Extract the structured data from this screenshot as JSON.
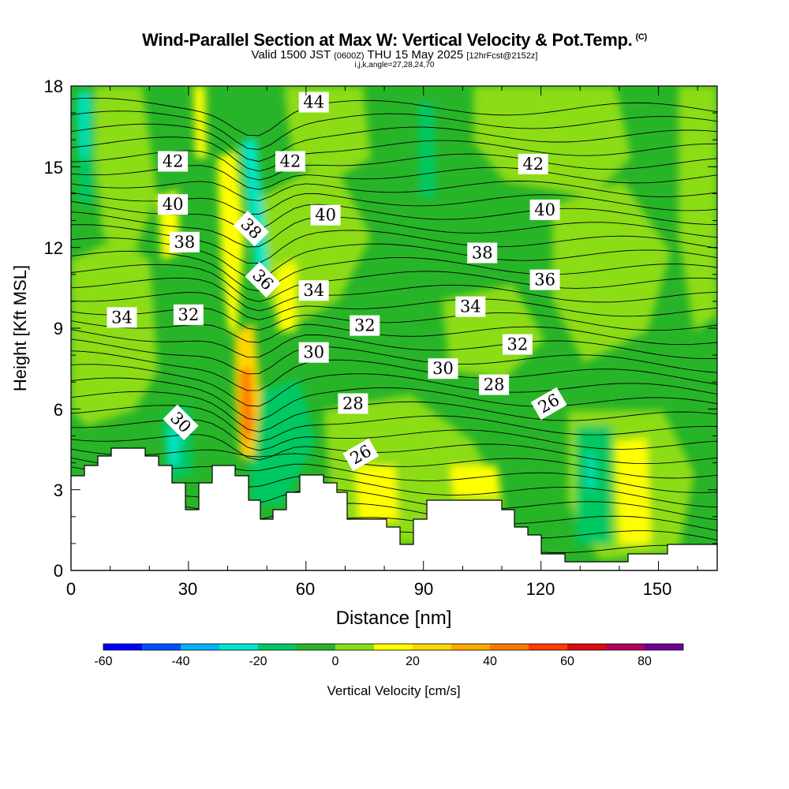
{
  "header": {
    "title": "Wind-Parallel Section at Max W: Vertical Velocity & Pot.Temp.",
    "copyright_mark": "(C)",
    "subtitle_prefix": "Valid 1500 JST",
    "subtitle_utc": "(0600Z)",
    "subtitle_date": "THU 15 May 2025",
    "subtitle_fcst": "[12hrFcst@2152z]",
    "params": "i,j,k,angle=27,28,24,70"
  },
  "chart_data": {
    "type": "heatmap",
    "title": "Wind-Parallel Section at Max W: Vertical Velocity & Pot.Temp.",
    "xlabel": "Distance [nm]",
    "ylabel": "Height [Kft MSL]",
    "xlim": [
      0,
      165
    ],
    "ylim": [
      0,
      18
    ],
    "x_ticks": [
      0,
      30,
      60,
      90,
      120,
      150
    ],
    "y_ticks": [
      0,
      3,
      6,
      9,
      12,
      15,
      18
    ],
    "colorbar": {
      "label": "Vertical Velocity [cm/s]",
      "ticks": [
        -60,
        -40,
        -20,
        0,
        20,
        40,
        60,
        80
      ],
      "bins": [
        -60,
        -50,
        -40,
        -30,
        -20,
        -10,
        0,
        10,
        20,
        30,
        40,
        50,
        60,
        70,
        80,
        90
      ],
      "colors": [
        "#0000ff",
        "#0050ff",
        "#00b4ff",
        "#00e6c8",
        "#00c864",
        "#28b428",
        "#8cdc14",
        "#ffff00",
        "#ffd700",
        "#ffaa00",
        "#ff7800",
        "#ff3c00",
        "#dc0a14",
        "#b4005a",
        "#6e0096"
      ]
    },
    "theta_labels": [
      {
        "text": "44",
        "x": 62,
        "y": 17.4,
        "angle": 0
      },
      {
        "text": "42",
        "x": 26,
        "y": 15.2,
        "angle": 0
      },
      {
        "text": "42",
        "x": 56,
        "y": 15.2,
        "angle": 0
      },
      {
        "text": "42",
        "x": 118,
        "y": 15.1,
        "angle": 0
      },
      {
        "text": "40",
        "x": 26,
        "y": 13.6,
        "angle": 0
      },
      {
        "text": "40",
        "x": 65,
        "y": 13.2,
        "angle": 0
      },
      {
        "text": "40",
        "x": 121,
        "y": 13.4,
        "angle": 0
      },
      {
        "text": "38",
        "x": 29,
        "y": 12.2,
        "angle": 0
      },
      {
        "text": "38",
        "x": 46,
        "y": 12.7,
        "angle": 45
      },
      {
        "text": "38",
        "x": 105,
        "y": 11.8,
        "angle": 0
      },
      {
        "text": "36",
        "x": 49,
        "y": 10.8,
        "angle": 45
      },
      {
        "text": "36",
        "x": 121,
        "y": 10.8,
        "angle": 0
      },
      {
        "text": "34",
        "x": 13,
        "y": 9.4,
        "angle": 0
      },
      {
        "text": "34",
        "x": 62,
        "y": 10.4,
        "angle": 0
      },
      {
        "text": "34",
        "x": 102,
        "y": 9.8,
        "angle": 0
      },
      {
        "text": "32",
        "x": 30,
        "y": 9.5,
        "angle": 0
      },
      {
        "text": "32",
        "x": 75,
        "y": 9.1,
        "angle": 0
      },
      {
        "text": "32",
        "x": 114,
        "y": 8.4,
        "angle": 0
      },
      {
        "text": "30",
        "x": 28,
        "y": 5.5,
        "angle": 45
      },
      {
        "text": "30",
        "x": 62,
        "y": 8.1,
        "angle": 0
      },
      {
        "text": "30",
        "x": 95,
        "y": 7.5,
        "angle": 0
      },
      {
        "text": "28",
        "x": 72,
        "y": 6.2,
        "angle": 0
      },
      {
        "text": "28",
        "x": 108,
        "y": 6.9,
        "angle": 0
      },
      {
        "text": "26",
        "x": 74,
        "y": 4.3,
        "angle": -30
      },
      {
        "text": "26",
        "x": 122,
        "y": 6.2,
        "angle": -30
      }
    ]
  }
}
